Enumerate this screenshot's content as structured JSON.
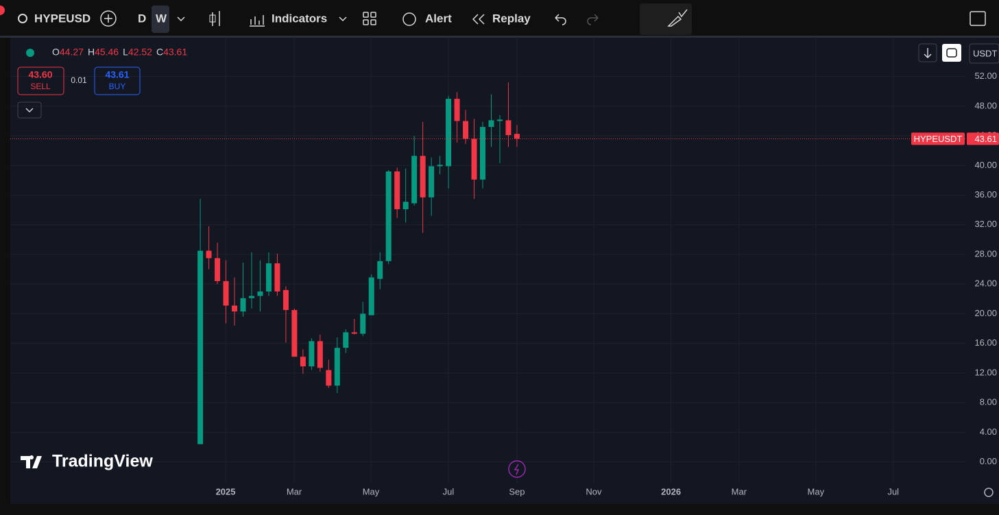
{
  "toolbar": {
    "symbol": "HYPEUSD",
    "intervals": [
      "D",
      "W"
    ],
    "indicators": "Indicators",
    "alert": "Alert",
    "replay": "Replay"
  },
  "legend": {
    "labels": [
      "O",
      "H",
      "L",
      "C"
    ]
  },
  "trade": {
    "sell_price": "43.60",
    "sell": "SELL",
    "spread": "0.01",
    "buy_price": "43.61",
    "buy": "BUY",
    "currency": "USDT"
  },
  "brand": "TradingView",
  "chart_data": {
    "type": "candlestick",
    "series": [
      {
        "name": "HYPEUSDT",
        "open": [
          2.4,
          28.5,
          27.5,
          24.4,
          21.1,
          20.3,
          22.1,
          22.4,
          23.0,
          26.8,
          23.2,
          20.5,
          14.2,
          12.9,
          16.3,
          12.4,
          10.3,
          15.4,
          17.5,
          17.3,
          19.8,
          24.7,
          27.1,
          39.2,
          34.1,
          34.9,
          41.3,
          35.7,
          39.9,
          39.9,
          49.0,
          46.0,
          43.6,
          38.1,
          45.2,
          46.0,
          46.1,
          44.27
        ],
        "high": [
          35.5,
          31.8,
          29.6,
          27.2,
          24.9,
          26.9,
          28.3,
          27.2,
          28.3,
          28.1,
          23.7,
          20.7,
          15.2,
          16.7,
          17.2,
          13.8,
          16.8,
          17.9,
          19.3,
          21.6,
          25.3,
          28.3,
          39.4,
          39.7,
          39.6,
          44.0,
          45.9,
          41.1,
          41.3,
          49.4,
          49.9,
          47.5,
          46.3,
          45.9,
          49.6,
          46.8,
          51.2,
          45.46
        ],
        "low": [
          2.4,
          26.0,
          24.0,
          18.7,
          18.4,
          19.6,
          20.7,
          20.3,
          22.4,
          22.4,
          16.1,
          14.2,
          11.9,
          12.4,
          12.2,
          10.0,
          9.3,
          14.7,
          17.2,
          17.0,
          19.8,
          23.3,
          26.7,
          32.9,
          32.3,
          34.6,
          30.9,
          33.2,
          38.8,
          36.9,
          43.1,
          42.9,
          35.5,
          36.9,
          42.5,
          40.3,
          42.5,
          42.52
        ],
        "close": [
          28.5,
          27.5,
          24.4,
          21.1,
          20.3,
          22.1,
          22.4,
          23.0,
          26.8,
          23.0,
          20.5,
          14.2,
          12.9,
          16.3,
          12.7,
          10.3,
          15.4,
          17.5,
          17.3,
          20.0,
          24.9,
          27.1,
          39.2,
          34.1,
          35.1,
          41.3,
          35.7,
          39.9,
          40.1,
          49.0,
          46.0,
          43.6,
          38.1,
          45.2,
          46.1,
          46.2,
          44.1,
          43.61
        ]
      }
    ],
    "up_color": "#089981",
    "down_color": "#f23645",
    "grid": true,
    "xlim": [
      -22.2,
      89.4
    ],
    "xticks": [
      {
        "value": 2.96,
        "label": "2025"
      },
      {
        "value": 10.97,
        "label": "Mar"
      },
      {
        "value": 19.94,
        "label": "May"
      },
      {
        "value": 28.99,
        "label": "Jul"
      },
      {
        "value": 37.0,
        "label": "Sep"
      },
      {
        "value": 45.97,
        "label": "Nov"
      },
      {
        "value": 55.0,
        "label": "2026"
      },
      {
        "value": 62.95,
        "label": "Mar"
      },
      {
        "value": 71.92,
        "label": "May"
      },
      {
        "value": 80.97,
        "label": "Jul"
      }
    ],
    "ylim": [
      -2.9,
      56.5
    ],
    "yticks": [
      {
        "value": 0,
        "label": "0.00"
      },
      {
        "value": 4,
        "label": "4.00"
      },
      {
        "value": 8,
        "label": "8.00"
      },
      {
        "value": 12,
        "label": "12.00"
      },
      {
        "value": 16,
        "label": "16.00"
      },
      {
        "value": 20,
        "label": "20.00"
      },
      {
        "value": 24,
        "label": "24.00"
      },
      {
        "value": 28,
        "label": "28.00"
      },
      {
        "value": 32,
        "label": "32.00"
      },
      {
        "value": 36,
        "label": "36.00"
      },
      {
        "value": 40,
        "label": "40.00"
      },
      {
        "value": 44,
        "label": "44.00"
      },
      {
        "value": 48,
        "label": "48.00"
      },
      {
        "value": 52,
        "label": "52.00"
      }
    ]
  }
}
